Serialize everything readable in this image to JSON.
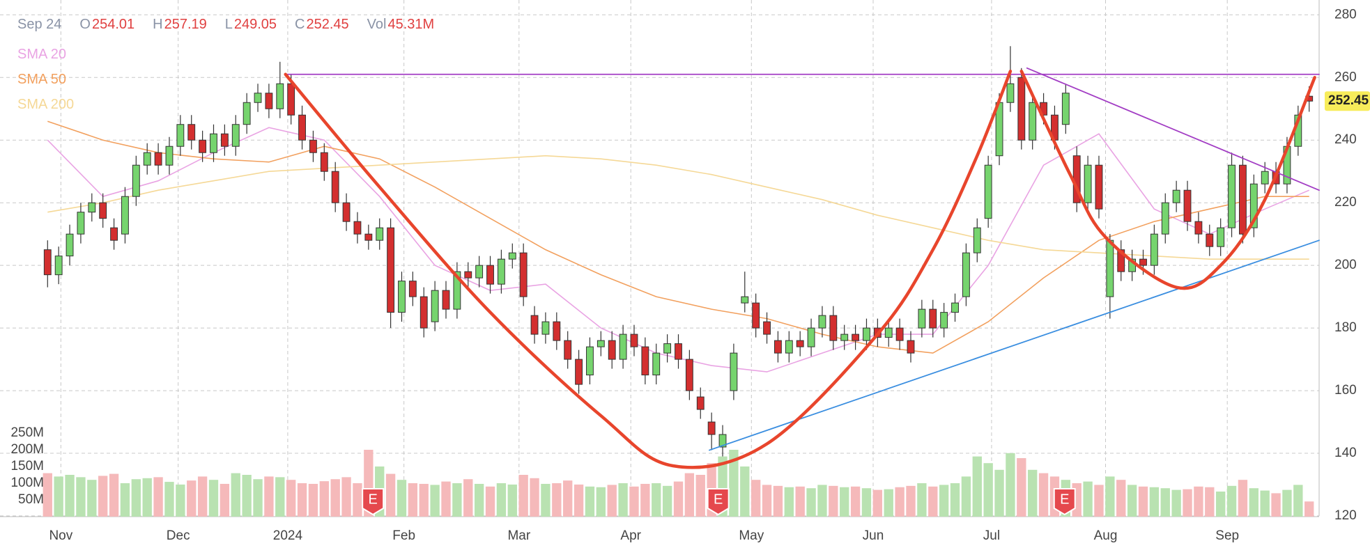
{
  "chart_data": {
    "type": "candlestick",
    "date": "Sep 24",
    "header": [
      {
        "label": "O",
        "value": 254.01
      },
      {
        "label": "H",
        "value": 257.19
      },
      {
        "label": "L",
        "value": 249.05
      },
      {
        "label": "C",
        "value": 252.45
      },
      {
        "label": "Vol",
        "value": 45.31,
        "value_label": "45.31M"
      }
    ],
    "xlim": [
      -4.3,
      114.9
    ],
    "xticks": [
      {
        "value": 1.2,
        "label": "Nov"
      },
      {
        "value": 11.8,
        "label": "Dec"
      },
      {
        "value": 21.7,
        "label": "2024"
      },
      {
        "value": 32.2,
        "label": "Feb"
      },
      {
        "value": 42.6,
        "label": "Mar"
      },
      {
        "value": 52.7,
        "label": "Apr"
      },
      {
        "value": 63.6,
        "label": "May"
      },
      {
        "value": 74.6,
        "label": "Jun"
      },
      {
        "value": 85.3,
        "label": "Jul"
      },
      {
        "value": 95.6,
        "label": "Aug"
      },
      {
        "value": 106.6,
        "label": "Sep"
      }
    ],
    "ylim": [
      120,
      280
    ],
    "yticks": [
      120,
      140,
      160,
      180,
      200,
      220,
      240,
      260,
      280
    ],
    "grid": true,
    "up_color": "#76d46e",
    "down_color": "#d32f2f",
    "open": [
      205,
      197,
      203,
      210,
      217,
      220,
      212,
      210,
      222,
      232,
      236,
      232,
      238,
      245,
      240,
      236,
      242,
      238,
      245,
      252,
      255,
      250,
      258,
      248,
      240,
      236,
      230,
      220,
      214,
      210,
      208,
      212,
      185,
      195,
      190,
      182,
      192,
      186,
      198,
      196,
      200,
      194,
      202,
      204,
      184,
      178,
      182,
      176,
      170,
      165,
      174,
      176,
      170,
      178,
      174,
      165,
      172,
      175,
      170,
      158,
      150,
      142,
      160,
      188,
      188,
      182,
      176,
      172,
      176,
      174,
      180,
      184,
      176,
      178,
      176,
      180,
      177,
      180,
      176,
      180,
      186,
      180,
      185,
      190,
      204,
      215,
      235,
      252,
      260,
      240,
      252,
      248,
      245,
      235,
      220,
      232,
      190,
      205,
      198,
      202,
      200,
      210,
      220,
      224,
      214,
      210,
      206,
      212,
      232,
      212,
      226,
      230,
      226,
      238,
      254.01
    ],
    "high": [
      208,
      206,
      213,
      220,
      223,
      223,
      215,
      225,
      235,
      239,
      239,
      241,
      248,
      248,
      243,
      245,
      245,
      248,
      255,
      258,
      258,
      265,
      261,
      251,
      243,
      239,
      233,
      223,
      217,
      213,
      215,
      215,
      198,
      198,
      193,
      195,
      195,
      201,
      201,
      203,
      203,
      205,
      207,
      207,
      187,
      185,
      185,
      179,
      173,
      177,
      179,
      179,
      181,
      181,
      177,
      175,
      178,
      178,
      173,
      161,
      153,
      149,
      175,
      198,
      191,
      185,
      179,
      179,
      179,
      183,
      187,
      187,
      181,
      181,
      183,
      183,
      183,
      183,
      179,
      189,
      189,
      188,
      191,
      207,
      215,
      235,
      255,
      270,
      263,
      255,
      255,
      251,
      258,
      238,
      235,
      235,
      210,
      208,
      205,
      205,
      213,
      223,
      227,
      227,
      217,
      213,
      215,
      236,
      235,
      229,
      233,
      233,
      241,
      251,
      257.19
    ],
    "low": [
      193,
      194,
      200,
      207,
      214,
      212,
      205,
      207,
      219,
      229,
      229,
      229,
      235,
      237,
      233,
      233,
      235,
      235,
      242,
      249,
      247,
      247,
      245,
      237,
      233,
      227,
      217,
      211,
      207,
      205,
      205,
      180,
      182,
      187,
      177,
      179,
      183,
      183,
      193,
      193,
      191,
      191,
      199,
      187,
      175,
      175,
      173,
      167,
      159,
      162,
      171,
      167,
      167,
      171,
      162,
      162,
      169,
      167,
      157,
      151,
      141,
      139,
      157,
      185,
      177,
      175,
      169,
      169,
      171,
      171,
      177,
      173,
      173,
      173,
      173,
      174,
      174,
      173,
      169,
      177,
      177,
      177,
      182,
      187,
      201,
      212,
      232,
      249,
      237,
      237,
      245,
      237,
      242,
      217,
      217,
      215,
      183,
      195,
      195,
      197,
      197,
      207,
      217,
      211,
      207,
      203,
      203,
      209,
      207,
      209,
      223,
      223,
      223,
      235,
      249.05
    ],
    "close": [
      197,
      203,
      210,
      217,
      220,
      215,
      208,
      222,
      232,
      236,
      232,
      238,
      245,
      240,
      236,
      242,
      238,
      245,
      252,
      255,
      250,
      258,
      248,
      240,
      236,
      230,
      220,
      214,
      210,
      208,
      212,
      185,
      195,
      190,
      180,
      192,
      186,
      198,
      196,
      200,
      194,
      202,
      204,
      190,
      178,
      182,
      176,
      170,
      162,
      174,
      176,
      170,
      178,
      174,
      165,
      172,
      175,
      170,
      160,
      154,
      146,
      146,
      172,
      190,
      180,
      178,
      172,
      176,
      174,
      180,
      184,
      176,
      178,
      176,
      180,
      177,
      180,
      176,
      172,
      186,
      180,
      185,
      188,
      204,
      212,
      232,
      252,
      258,
      240,
      252,
      248,
      240,
      255,
      220,
      232,
      218,
      208,
      198,
      202,
      200,
      210,
      220,
      224,
      214,
      210,
      206,
      212,
      232,
      210,
      226,
      230,
      226,
      238,
      248,
      252.45
    ],
    "volume": {
      "ylim": [
        0,
        250
      ],
      "yticks": [
        {
          "value": 50,
          "label": "50M"
        },
        {
          "value": 100,
          "label": "100M"
        },
        {
          "value": 150,
          "label": "150M"
        },
        {
          "value": 200,
          "label": "200M"
        },
        {
          "value": 250,
          "label": "250M"
        }
      ],
      "up_color": "#b9e2b1",
      "down_color": "#f5b9ba",
      "values": [
        130,
        120,
        125,
        118,
        110,
        122,
        128,
        100,
        112,
        115,
        118,
        104,
        96,
        108,
        120,
        110,
        98,
        130,
        125,
        112,
        120,
        118,
        110,
        100,
        98,
        106,
        112,
        118,
        100,
        200,
        150,
        128,
        110,
        100,
        98,
        95,
        105,
        100,
        112,
        98,
        90,
        100,
        96,
        125,
        115,
        98,
        100,
        108,
        96,
        90,
        88,
        95,
        100,
        90,
        98,
        100,
        92,
        105,
        130,
        125,
        160,
        180,
        200,
        150,
        110,
        95,
        92,
        88,
        90,
        85,
        95,
        92,
        88,
        90,
        85,
        80,
        82,
        88,
        92,
        100,
        90,
        95,
        100,
        120,
        180,
        160,
        140,
        190,
        175,
        140,
        130,
        120,
        110,
        100,
        105,
        95,
        120,
        110,
        95,
        90,
        88,
        85,
        80,
        82,
        90,
        88,
        75,
        92,
        110,
        85,
        78,
        70,
        80,
        95,
        45.31
      ]
    },
    "series": [
      {
        "name": "SMA 20",
        "color": "#e9a3e3",
        "x": [
          0,
          5,
          10,
          15,
          20,
          25,
          30,
          35,
          40,
          45,
          50,
          55,
          60,
          65,
          70,
          75,
          80,
          85,
          90,
          95,
          100,
          105,
          110,
          114
        ],
        "values": [
          240,
          222,
          227,
          236,
          244,
          240,
          222,
          200,
          192,
          194,
          180,
          172,
          168,
          166,
          172,
          178,
          178,
          200,
          232,
          242,
          218,
          210,
          218,
          224
        ]
      },
      {
        "name": "SMA 50",
        "color": "#f2a05e",
        "x": [
          0,
          5,
          10,
          15,
          20,
          25,
          30,
          35,
          40,
          45,
          50,
          55,
          60,
          65,
          70,
          75,
          80,
          85,
          90,
          95,
          100,
          105,
          110,
          114
        ],
        "values": [
          246,
          240,
          236,
          234,
          233,
          238,
          234,
          225,
          215,
          205,
          197,
          190,
          186,
          183,
          178,
          174,
          172,
          182,
          196,
          208,
          214,
          218,
          222,
          222
        ]
      },
      {
        "name": "SMA 200",
        "color": "#f5d896",
        "x": [
          0,
          5,
          10,
          15,
          20,
          25,
          30,
          35,
          40,
          45,
          50,
          55,
          60,
          65,
          70,
          75,
          80,
          85,
          90,
          95,
          100,
          105,
          110,
          114
        ],
        "values": [
          217,
          220,
          224,
          227,
          230,
          231,
          232,
          233,
          234,
          235,
          234,
          232,
          229,
          225,
          221,
          216,
          212,
          208,
          205,
          204,
          203,
          202,
          202,
          202
        ]
      }
    ],
    "drawings": [
      {
        "color": "#a23dc4",
        "x": [
          21.5,
          114.9
        ],
        "values": [
          261,
          261
        ]
      },
      {
        "color": "#a23dc4",
        "x": [
          88.5,
          114.9
        ],
        "values": [
          263,
          224
        ]
      },
      {
        "color": "#3a8ee0",
        "x": [
          59.8,
          114.9
        ],
        "values": [
          141,
          208
        ]
      },
      {
        "color": "#e8452c",
        "x": [
          21.5,
          30,
          40,
          50,
          56.5,
          65,
          75,
          80,
          84,
          87
        ],
        "values": [
          261,
          225,
          185,
          152,
          136,
          143,
          178,
          205,
          235,
          262
        ]
      },
      {
        "color": "#e8452c",
        "x": [
          88,
          92.4,
          95.6,
          102,
          106,
          110,
          114.5
        ],
        "values": [
          262,
          229,
          209,
          193,
          200,
          221,
          260
        ]
      }
    ],
    "earnings": {
      "label": "E",
      "color": "#e5484d",
      "x": [
        29.4,
        60.6,
        91.9
      ]
    },
    "last_price_color": "#f7ec5a"
  }
}
